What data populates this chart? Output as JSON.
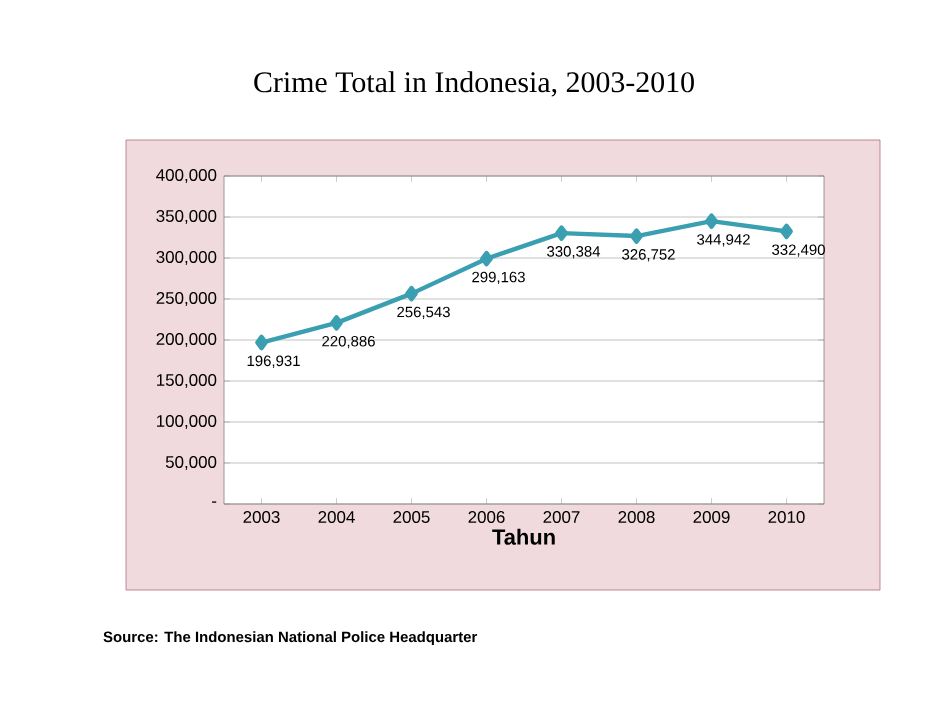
{
  "chart_data": {
    "type": "line",
    "title": "Crime Total in Indonesia, 2003-2010",
    "xlabel": "Tahun",
    "categories": [
      "2003",
      "2004",
      "2005",
      "2006",
      "2007",
      "2008",
      "2009",
      "2010"
    ],
    "values": [
      196931,
      220886,
      256543,
      299163,
      330384,
      326752,
      344942,
      332490
    ],
    "value_labels": [
      "196,931",
      "220,886",
      "256,543",
      "299,163",
      "330,384",
      "326,752",
      "344,942",
      "332,490"
    ],
    "color": "#3a9fb0",
    "marker": "diamond",
    "line_style": "solid",
    "grid": "y",
    "ylim": [
      0,
      400000
    ],
    "yticks": [
      {
        "value": 0,
        "label": "-"
      },
      {
        "value": 50000,
        "label": "50,000"
      },
      {
        "value": 100000,
        "label": "100,000"
      },
      {
        "value": 150000,
        "label": "150,000"
      },
      {
        "value": 200000,
        "label": "200,000"
      },
      {
        "value": 250000,
        "label": "250,000"
      },
      {
        "value": 300000,
        "label": "300,000"
      },
      {
        "value": 350000,
        "label": "350,000"
      },
      {
        "value": 400000,
        "label": "400,000"
      }
    ],
    "annotations": [
      "Source:  The Indonesian National Police Headquarter"
    ]
  }
}
